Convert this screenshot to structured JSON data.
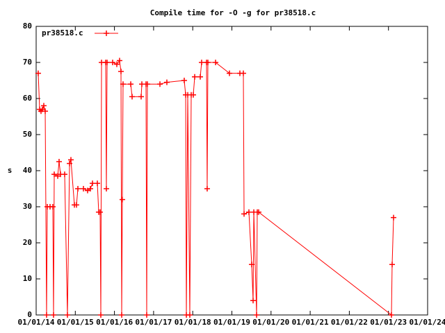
{
  "chart_data": {
    "type": "line",
    "title": "Compile time for -O -g for pr38518.c",
    "y_label": "s",
    "x": [
      2014.053,
      2014.089,
      2014.124,
      2014.16,
      2014.195,
      2014.231,
      2014.266,
      2014.284,
      2014.355,
      2014.426,
      2014.444,
      2014.462,
      2014.551,
      2014.586,
      2014.622,
      2014.728,
      2014.799,
      2014.853,
      2014.888,
      2014.977,
      2015.03,
      2015.066,
      2015.208,
      2015.314,
      2015.385,
      2015.439,
      2015.563,
      2015.598,
      2015.634,
      2015.652,
      2015.67,
      2015.776,
      2015.794,
      2015.812,
      2015.954,
      2016.06,
      2016.131,
      2016.167,
      2016.185,
      2016.202,
      2016.22,
      2016.416,
      2016.451,
      2016.682,
      2016.7,
      2016.806,
      2016.824,
      2016.842,
      2017.162,
      2017.339,
      2017.783,
      2017.819,
      2017.837,
      2017.872,
      2017.925,
      2017.961,
      2018.014,
      2018.05,
      2018.192,
      2018.227,
      2018.352,
      2018.369,
      2018.387,
      2018.583,
      2018.938,
      2019.204,
      2019.293,
      2019.311,
      2019.435,
      2019.506,
      2019.542,
      2019.56,
      2019.631,
      2019.648,
      2019.684,
      2023.076,
      2023.094,
      2023.13
    ],
    "series": [
      {
        "name": "pr38518.c",
        "color": "#ff0000",
        "values": [
          67,
          57,
          56.5,
          57,
          58,
          56.5,
          0,
          30,
          30,
          30,
          0,
          39,
          38.5,
          42.5,
          39,
          39,
          0,
          42,
          43,
          30.5,
          30.5,
          35,
          35,
          34.5,
          35,
          36.5,
          36.5,
          28.5,
          28.5,
          0,
          70,
          70,
          35,
          70,
          70,
          69.5,
          70.5,
          67.5,
          0,
          32,
          64,
          64,
          60.5,
          60.5,
          64,
          64,
          0,
          64,
          64,
          64.5,
          65,
          61,
          0,
          61,
          0,
          61,
          61,
          66,
          66,
          70,
          70,
          35,
          70,
          70,
          67,
          67,
          67,
          28,
          28.5,
          14,
          4,
          28.5,
          0,
          28.5,
          28.5,
          0,
          14,
          27
        ]
      }
    ],
    "xlim": [
      2014,
      2024
    ],
    "xticks": [
      {
        "value": 2014,
        "label": "01/01/14"
      },
      {
        "value": 2015,
        "label": "01/01/15"
      },
      {
        "value": 2016,
        "label": "01/01/16"
      },
      {
        "value": 2017,
        "label": "01/01/17"
      },
      {
        "value": 2018,
        "label": "01/01/18"
      },
      {
        "value": 2019,
        "label": "01/01/19"
      },
      {
        "value": 2020,
        "label": "01/01/20"
      },
      {
        "value": 2021,
        "label": "01/01/21"
      },
      {
        "value": 2022,
        "label": "01/01/22"
      },
      {
        "value": 2023,
        "label": "01/01/23"
      },
      {
        "value": 2024,
        "label": "01/01/24"
      }
    ],
    "ylim": [
      0,
      80
    ],
    "yticks": [
      0,
      10,
      20,
      30,
      40,
      50,
      60,
      70,
      80
    ],
    "legend": "top-left"
  }
}
